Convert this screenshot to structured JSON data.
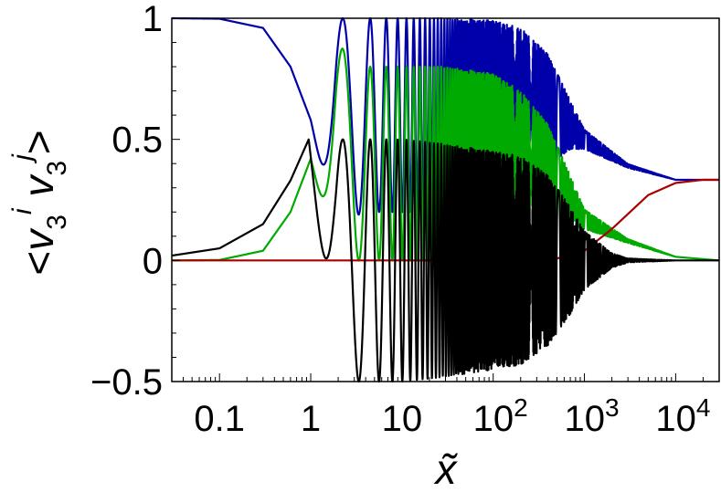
{
  "chart_data": {
    "type": "line",
    "title": "",
    "xlabel": "x̃",
    "ylabel": "<v3i v3j>",
    "x_scale": "log",
    "xlim": [
      0.03,
      30000
    ],
    "ylim": [
      -0.5,
      1
    ],
    "grid": false,
    "legend": "none",
    "x_ticks": [
      {
        "value": 0.1,
        "label": "0.1"
      },
      {
        "value": 1,
        "label": "1"
      },
      {
        "value": 10,
        "label": "10"
      },
      {
        "value": 100,
        "base": "10",
        "exp": "2"
      },
      {
        "value": 1000,
        "base": "10",
        "exp": "3"
      },
      {
        "value": 10000,
        "base": "10",
        "exp": "4"
      }
    ],
    "y_ticks": [
      {
        "value": 1,
        "label": "1"
      },
      {
        "value": 0.5,
        "label": "0.5"
      },
      {
        "value": 0,
        "label": "0"
      },
      {
        "value": -0.5,
        "label": "−0.5"
      }
    ],
    "series": [
      {
        "color": "#0000aa",
        "style": "oscillating",
        "x": [
          0.03,
          0.1,
          0.3,
          0.6,
          1.0,
          1.9,
          3.6,
          10,
          30,
          100,
          200,
          400,
          700,
          1000,
          3000,
          10000,
          30000
        ],
        "center": [
          1.0,
          0.998,
          0.96,
          0.8,
          0.58,
          0.55,
          0.6,
          0.6,
          0.6,
          0.61,
          0.63,
          0.62,
          0.56,
          0.5,
          0.39,
          0.333,
          0.333
        ],
        "amplitude": [
          0,
          0,
          0,
          0,
          0,
          0.45,
          0.4,
          0.4,
          0.4,
          0.38,
          0.33,
          0.23,
          0.1,
          0.04,
          0.008,
          0,
          0
        ]
      },
      {
        "color": "#00aa00",
        "style": "oscillating",
        "x": [
          0.03,
          0.1,
          0.3,
          0.6,
          1.0,
          1.9,
          3.6,
          10,
          30,
          100,
          200,
          400,
          700,
          1000,
          3000,
          10000,
          30000
        ],
        "center": [
          0.0,
          0.002,
          0.04,
          0.2,
          0.42,
          0.45,
          0.4,
          0.4,
          0.4,
          0.39,
          0.37,
          0.33,
          0.25,
          0.17,
          0.08,
          0.015,
          0.0
        ],
        "amplitude": [
          0,
          0,
          0,
          0,
          0,
          0.45,
          0.4,
          0.4,
          0.4,
          0.38,
          0.33,
          0.23,
          0.1,
          0.04,
          0.008,
          0,
          0
        ]
      },
      {
        "color": "#aa0000",
        "style": "smooth",
        "x": [
          0.03,
          10,
          100,
          300,
          500,
          1000,
          2000,
          5000,
          10000,
          20000,
          30000
        ],
        "y": [
          0.0,
          0.0,
          0.0,
          0.002,
          0.008,
          0.04,
          0.13,
          0.27,
          0.32,
          0.333,
          0.333
        ]
      },
      {
        "color": "#000000",
        "style": "oscillating",
        "x": [
          0.03,
          0.1,
          0.3,
          0.6,
          0.95,
          1.9,
          2.8,
          10,
          30,
          100,
          200,
          400,
          700,
          1000,
          2000,
          3000,
          10000,
          30000
        ],
        "center": [
          0.02,
          0.05,
          0.15,
          0.33,
          0.5,
          0.0,
          0.0,
          0.0,
          0.0,
          0.0,
          0.0,
          0.0,
          0.0,
          0.0,
          0.0,
          0.0,
          0.0,
          0.0
        ],
        "amplitude": [
          0,
          0,
          0,
          0,
          0,
          0.5,
          0.5,
          0.5,
          0.48,
          0.45,
          0.43,
          0.35,
          0.22,
          0.12,
          0.03,
          0.008,
          0,
          0
        ]
      }
    ]
  }
}
